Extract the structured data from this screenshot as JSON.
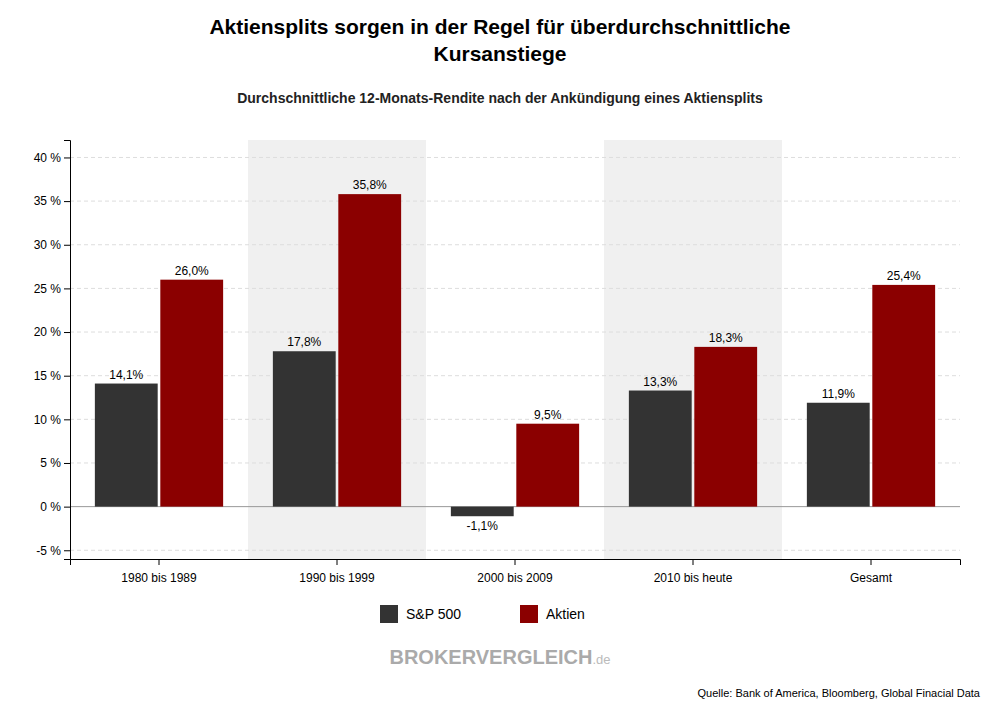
{
  "chart_data": {
    "type": "bar",
    "title": "Aktiensplits sorgen in der Regel für überdurchschnittliche\nKursanstiege",
    "subtitle": "Durchschnittliche 12-Monats-Rendite nach der Ankündigung eines Aktiensplits",
    "categories": [
      "1980 bis 1989",
      "1990 bis 1999",
      "2000 bis 2009",
      "2010 bis heute",
      "Gesamt"
    ],
    "series": [
      {
        "name": "S&P 500",
        "color": "#333333",
        "values": [
          14.1,
          17.8,
          -1.1,
          13.3,
          11.9
        ],
        "value_labels": [
          "14,1%",
          "17,8%",
          "-1,1%",
          "13,3%",
          "11,9%"
        ]
      },
      {
        "name": "Aktien",
        "color": "#8B0000",
        "values": [
          26.0,
          35.8,
          9.5,
          18.3,
          25.4
        ],
        "value_labels": [
          "26,0%",
          "35,8%",
          "9,5%",
          "18,3%",
          "25,4%"
        ]
      }
    ],
    "ylim": [
      -6,
      42
    ],
    "yticks": [
      {
        "value": -5,
        "label": "-5 %"
      },
      {
        "value": 0,
        "label": "0 %"
      },
      {
        "value": 5,
        "label": "5 %"
      },
      {
        "value": 10,
        "label": "10 %"
      },
      {
        "value": 15,
        "label": "15 %"
      },
      {
        "value": 20,
        "label": "20 %"
      },
      {
        "value": 25,
        "label": "25 %"
      },
      {
        "value": 30,
        "label": "30 %"
      },
      {
        "value": 35,
        "label": "35 %"
      },
      {
        "value": 40,
        "label": "40 %"
      }
    ],
    "grid": true,
    "legend": "bottom",
    "data_labels": true,
    "annotations": [
      "Quelle: Bank of America, Bloomberg, Global Finacial Data",
      "BROKERVERGLEICH",
      ".de"
    ]
  }
}
